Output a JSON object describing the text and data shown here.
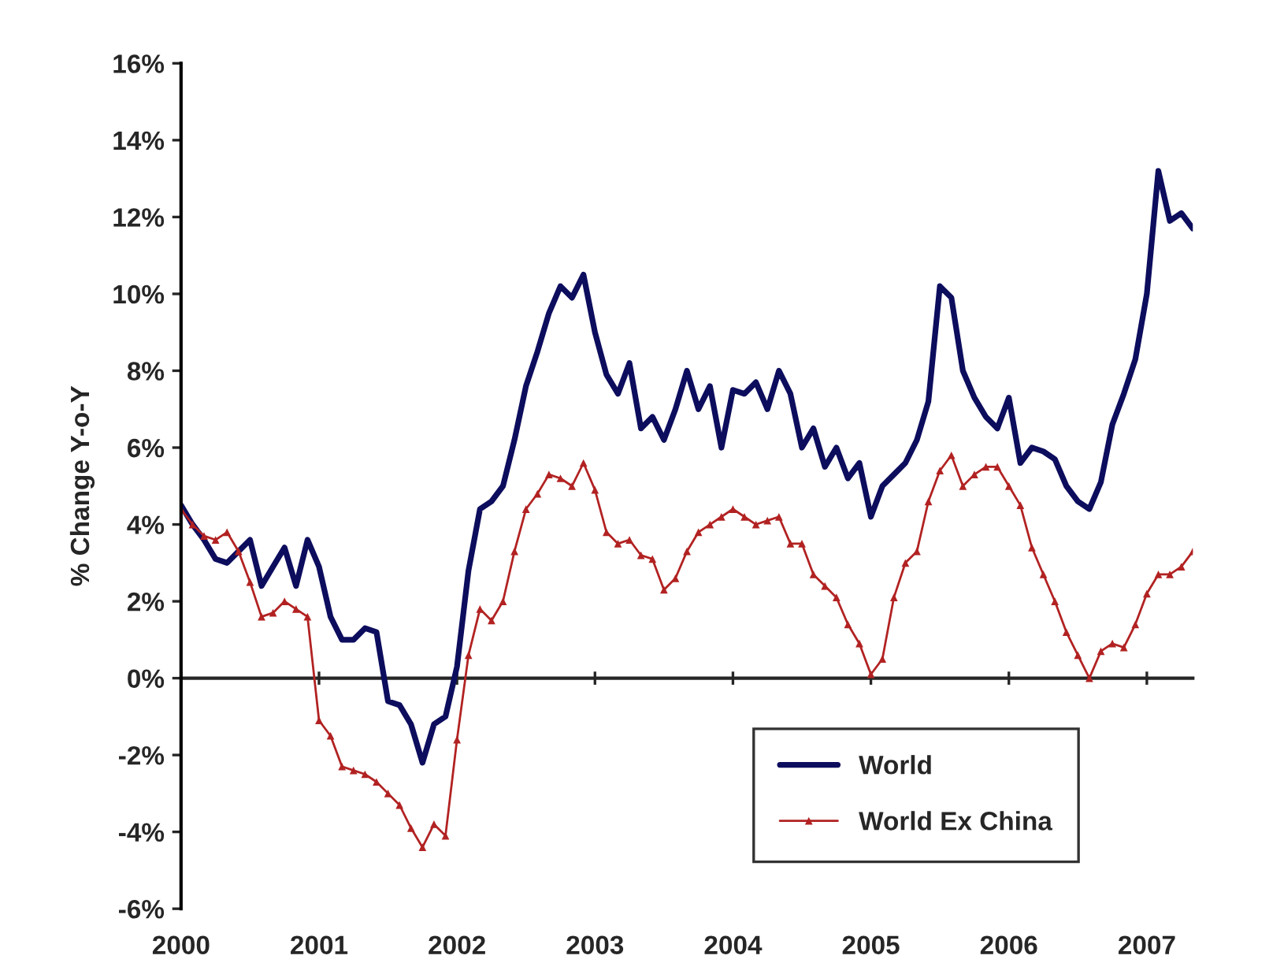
{
  "chart_data": {
    "type": "line",
    "ylabel": "% Change Y-o-Y",
    "xlim": [
      "2000-01",
      "2007-05"
    ],
    "xticks": [
      {
        "value": "2000-01",
        "label": "2000"
      },
      {
        "value": "2001-01",
        "label": "2001"
      },
      {
        "value": "2002-01",
        "label": "2002"
      },
      {
        "value": "2003-01",
        "label": "2003"
      },
      {
        "value": "2004-01",
        "label": "2004"
      },
      {
        "value": "2005-01",
        "label": "2005"
      },
      {
        "value": "2006-01",
        "label": "2006"
      },
      {
        "value": "2007-01",
        "label": "2007"
      }
    ],
    "ylim": [
      -6,
      16
    ],
    "yticks": [
      {
        "value": -6,
        "label": "-6%"
      },
      {
        "value": -4,
        "label": "-4%"
      },
      {
        "value": -2,
        "label": "-2%"
      },
      {
        "value": 0,
        "label": "0%"
      },
      {
        "value": 2,
        "label": "2%"
      },
      {
        "value": 4,
        "label": "4%"
      },
      {
        "value": 6,
        "label": "6%"
      },
      {
        "value": 8,
        "label": "8%"
      },
      {
        "value": 10,
        "label": "10%"
      },
      {
        "value": 12,
        "label": "12%"
      },
      {
        "value": 14,
        "label": "14%"
      },
      {
        "value": 16,
        "label": "16%"
      }
    ],
    "legend": "bottom right",
    "x": [
      "2000-01",
      "2000-02",
      "2000-03",
      "2000-04",
      "2000-05",
      "2000-06",
      "2000-07",
      "2000-08",
      "2000-09",
      "2000-10",
      "2000-11",
      "2000-12",
      "2001-01",
      "2001-02",
      "2001-03",
      "2001-04",
      "2001-05",
      "2001-06",
      "2001-07",
      "2001-08",
      "2001-09",
      "2001-10",
      "2001-11",
      "2001-12",
      "2002-01",
      "2002-02",
      "2002-03",
      "2002-04",
      "2002-05",
      "2002-06",
      "2002-07",
      "2002-08",
      "2002-09",
      "2002-10",
      "2002-11",
      "2002-12",
      "2003-01",
      "2003-02",
      "2003-03",
      "2003-04",
      "2003-05",
      "2003-06",
      "2003-07",
      "2003-08",
      "2003-09",
      "2003-10",
      "2003-11",
      "2003-12",
      "2004-01",
      "2004-02",
      "2004-03",
      "2004-04",
      "2004-05",
      "2004-06",
      "2004-07",
      "2004-08",
      "2004-09",
      "2004-10",
      "2004-11",
      "2004-12",
      "2005-01",
      "2005-02",
      "2005-03",
      "2005-04",
      "2005-05",
      "2005-06",
      "2005-07",
      "2005-08",
      "2005-09",
      "2005-10",
      "2005-11",
      "2005-12",
      "2006-01",
      "2006-02",
      "2006-03",
      "2006-04",
      "2006-05",
      "2006-06",
      "2006-07",
      "2006-08",
      "2006-09",
      "2006-10",
      "2006-11",
      "2006-12",
      "2007-01",
      "2007-02",
      "2007-03",
      "2007-04",
      "2007-05"
    ],
    "series": [
      {
        "name": "World",
        "color": "#0d0d5e",
        "marker": "none",
        "values": [
          4.5,
          4.0,
          3.6,
          3.1,
          3.0,
          3.3,
          3.6,
          2.4,
          2.9,
          3.4,
          2.4,
          3.6,
          2.9,
          1.6,
          1.0,
          1.0,
          1.3,
          1.2,
          -0.6,
          -0.7,
          -1.2,
          -2.2,
          -1.2,
          -1.0,
          0.3,
          2.8,
          4.4,
          4.6,
          5.0,
          6.2,
          7.6,
          8.5,
          9.5,
          10.2,
          9.9,
          10.5,
          9.0,
          7.9,
          7.4,
          8.2,
          6.5,
          6.8,
          6.2,
          7.0,
          8.0,
          7.0,
          7.6,
          6.0,
          7.5,
          7.4,
          7.7,
          7.0,
          8.0,
          7.4,
          6.0,
          6.5,
          5.5,
          6.0,
          5.2,
          5.6,
          4.2,
          5.0,
          5.3,
          5.6,
          6.2,
          7.2,
          10.2,
          9.9,
          8.0,
          7.3,
          6.8,
          6.5,
          7.3,
          5.6,
          6.0,
          5.9,
          5.7,
          5.0,
          4.6,
          4.4,
          5.1,
          6.6,
          7.4,
          8.3,
          10.0,
          13.2,
          11.9,
          12.1,
          11.7
        ]
      },
      {
        "name": "World Ex China",
        "color": "#b22222",
        "marker": "triangle",
        "values": [
          4.4,
          4.0,
          3.7,
          3.6,
          3.8,
          3.3,
          2.5,
          1.6,
          1.7,
          2.0,
          1.8,
          1.6,
          -1.1,
          -1.5,
          -2.3,
          -2.4,
          -2.5,
          -2.7,
          -3.0,
          -3.3,
          -3.9,
          -4.4,
          -3.8,
          -4.1,
          -1.6,
          0.6,
          1.8,
          1.5,
          2.0,
          3.3,
          4.4,
          4.8,
          5.3,
          5.2,
          5.0,
          5.6,
          4.9,
          3.8,
          3.5,
          3.6,
          3.2,
          3.1,
          2.3,
          2.6,
          3.3,
          3.8,
          4.0,
          4.2,
          4.4,
          4.2,
          4.0,
          4.1,
          4.2,
          3.5,
          3.5,
          2.7,
          2.4,
          2.1,
          1.4,
          0.9,
          0.1,
          0.5,
          2.1,
          3.0,
          3.3,
          4.6,
          5.4,
          5.8,
          5.0,
          5.3,
          5.5,
          5.5,
          5.0,
          4.5,
          3.4,
          2.7,
          2.0,
          1.2,
          0.6,
          0.0,
          0.7,
          0.9,
          0.8,
          1.4,
          2.2,
          2.7,
          2.7,
          2.9,
          3.3
        ]
      }
    ]
  }
}
